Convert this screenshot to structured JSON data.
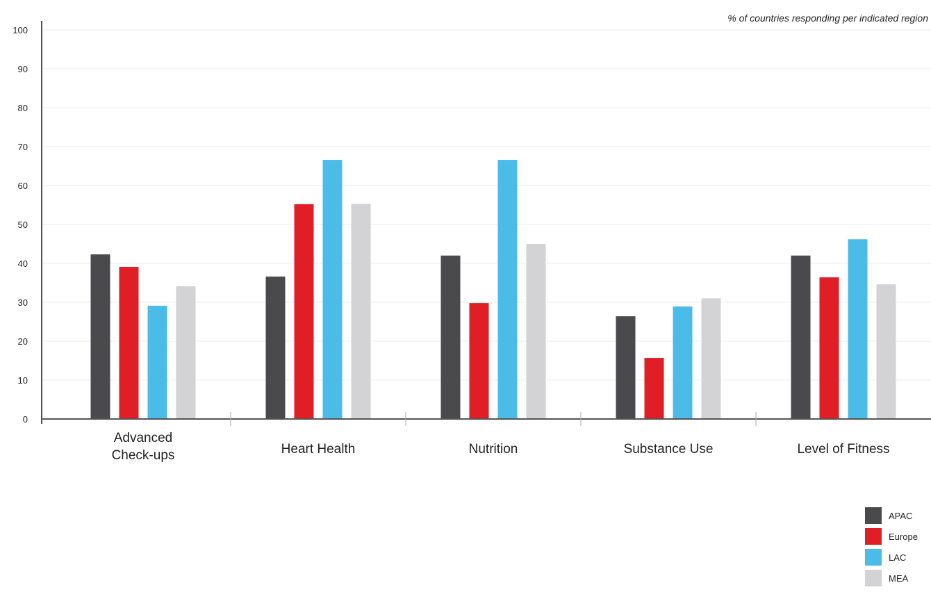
{
  "chart_data": {
    "type": "bar",
    "note": "% of countries responding per indicated region",
    "categories": [
      [
        "Advanced",
        "Check-ups"
      ],
      [
        "Heart Health"
      ],
      [
        "Nutrition"
      ],
      [
        "Substance Use"
      ],
      [
        "Level of Fitness"
      ]
    ],
    "series": [
      {
        "name": "APAC",
        "color": "#4a4a4c",
        "values": [
          42.3,
          36.6,
          42.0,
          26.4,
          42.0
        ]
      },
      {
        "name": "Europe",
        "color": "#e01e26",
        "values": [
          39.1,
          55.2,
          29.8,
          15.7,
          36.4
        ]
      },
      {
        "name": "LAC",
        "color": "#4bbbe8",
        "values": [
          29.1,
          66.6,
          66.6,
          28.9,
          46.2
        ]
      },
      {
        "name": "MEA",
        "color": "#d3d3d5",
        "values": [
          34.1,
          55.3,
          45.0,
          31.0,
          34.6
        ]
      }
    ],
    "yticks": [
      0,
      10,
      20,
      30,
      40,
      50,
      60,
      70,
      80,
      90,
      100
    ],
    "ylim": [
      0,
      100
    ],
    "grid": true,
    "legend_position": "bottom-right"
  }
}
